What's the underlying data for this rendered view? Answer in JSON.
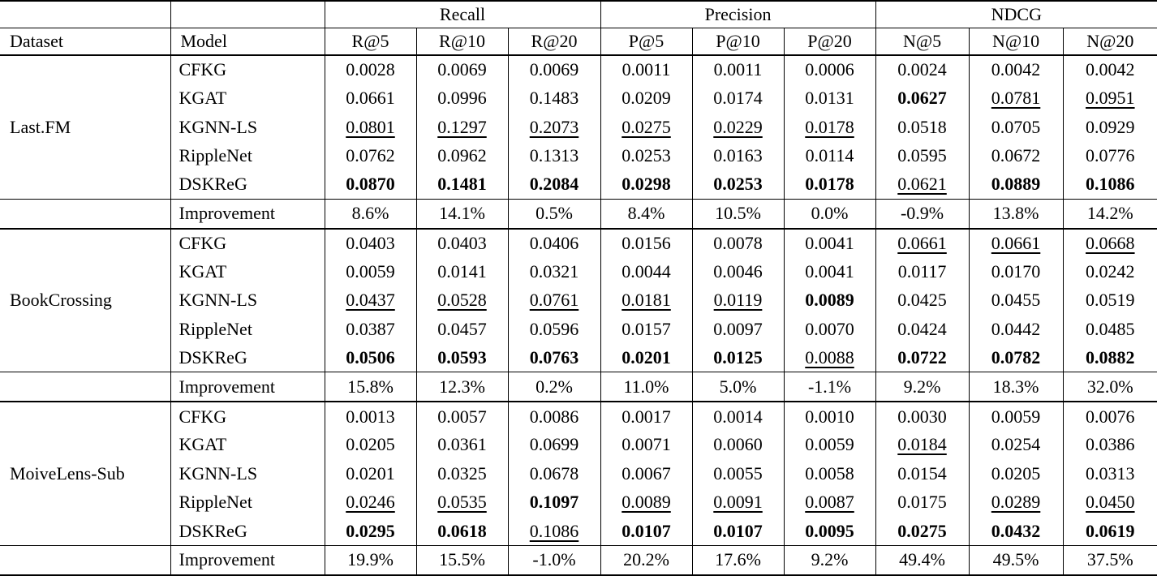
{
  "header": {
    "groups": {
      "recall": "Recall",
      "precision": "Precision",
      "ndcg": "NDCG"
    },
    "columns": [
      "Dataset",
      "Model",
      "R@5",
      "R@10",
      "R@20",
      "P@5",
      "P@10",
      "P@20",
      "N@5",
      "N@10",
      "N@20"
    ]
  },
  "blocks": [
    {
      "dataset": "Last.FM",
      "rows": [
        {
          "model": "CFKG",
          "cells": [
            {
              "t": "0.0028",
              "s": ""
            },
            {
              "t": "0.0069",
              "s": ""
            },
            {
              "t": "0.0069",
              "s": ""
            },
            {
              "t": "0.0011",
              "s": ""
            },
            {
              "t": "0.0011",
              "s": ""
            },
            {
              "t": "0.0006",
              "s": ""
            },
            {
              "t": "0.0024",
              "s": ""
            },
            {
              "t": "0.0042",
              "s": ""
            },
            {
              "t": "0.0042",
              "s": ""
            }
          ]
        },
        {
          "model": "KGAT",
          "cells": [
            {
              "t": "0.0661",
              "s": ""
            },
            {
              "t": "0.0996",
              "s": ""
            },
            {
              "t": "0.1483",
              "s": ""
            },
            {
              "t": "0.0209",
              "s": ""
            },
            {
              "t": "0.0174",
              "s": ""
            },
            {
              "t": "0.0131",
              "s": ""
            },
            {
              "t": "0.0627",
              "s": "b"
            },
            {
              "t": "0.0781",
              "s": "u"
            },
            {
              "t": "0.0951",
              "s": "u"
            }
          ]
        },
        {
          "model": "KGNN-LS",
          "cells": [
            {
              "t": "0.0801",
              "s": "u"
            },
            {
              "t": "0.1297",
              "s": "u"
            },
            {
              "t": "0.2073",
              "s": "u"
            },
            {
              "t": "0.0275",
              "s": "u"
            },
            {
              "t": "0.0229",
              "s": "u"
            },
            {
              "t": "0.0178",
              "s": "u"
            },
            {
              "t": "0.0518",
              "s": ""
            },
            {
              "t": "0.0705",
              "s": ""
            },
            {
              "t": "0.0929",
              "s": ""
            }
          ]
        },
        {
          "model": "RippleNet",
          "cells": [
            {
              "t": "0.0762",
              "s": ""
            },
            {
              "t": "0.0962",
              "s": ""
            },
            {
              "t": "0.1313",
              "s": ""
            },
            {
              "t": "0.0253",
              "s": ""
            },
            {
              "t": "0.0163",
              "s": ""
            },
            {
              "t": "0.0114",
              "s": ""
            },
            {
              "t": "0.0595",
              "s": ""
            },
            {
              "t": "0.0672",
              "s": ""
            },
            {
              "t": "0.0776",
              "s": ""
            }
          ]
        },
        {
          "model": "DSKReG",
          "cells": [
            {
              "t": "0.0870",
              "s": "b"
            },
            {
              "t": "0.1481",
              "s": "b"
            },
            {
              "t": "0.2084",
              "s": "b"
            },
            {
              "t": "0.0298",
              "s": "b"
            },
            {
              "t": "0.0253",
              "s": "b"
            },
            {
              "t": "0.0178",
              "s": "b"
            },
            {
              "t": "0.0621",
              "s": "u"
            },
            {
              "t": "0.0889",
              "s": "b"
            },
            {
              "t": "0.1086",
              "s": "b"
            }
          ]
        }
      ],
      "improvement": {
        "label": "Improvement",
        "values": [
          "8.6%",
          "14.1%",
          "0.5%",
          "8.4%",
          "10.5%",
          "0.0%",
          "-0.9%",
          "13.8%",
          "14.2%"
        ]
      }
    },
    {
      "dataset": "BookCrossing",
      "rows": [
        {
          "model": "CFKG",
          "cells": [
            {
              "t": "0.0403",
              "s": ""
            },
            {
              "t": "0.0403",
              "s": ""
            },
            {
              "t": "0.0406",
              "s": ""
            },
            {
              "t": "0.0156",
              "s": ""
            },
            {
              "t": "0.0078",
              "s": ""
            },
            {
              "t": "0.0041",
              "s": ""
            },
            {
              "t": "0.0661",
              "s": "u"
            },
            {
              "t": "0.0661",
              "s": "u"
            },
            {
              "t": "0.0668",
              "s": "u"
            }
          ]
        },
        {
          "model": "KGAT",
          "cells": [
            {
              "t": "0.0059",
              "s": ""
            },
            {
              "t": "0.0141",
              "s": ""
            },
            {
              "t": "0.0321",
              "s": ""
            },
            {
              "t": "0.0044",
              "s": ""
            },
            {
              "t": "0.0046",
              "s": ""
            },
            {
              "t": "0.0041",
              "s": ""
            },
            {
              "t": "0.0117",
              "s": ""
            },
            {
              "t": "0.0170",
              "s": ""
            },
            {
              "t": "0.0242",
              "s": ""
            }
          ]
        },
        {
          "model": "KGNN-LS",
          "cells": [
            {
              "t": "0.0437",
              "s": "u"
            },
            {
              "t": "0.0528",
              "s": "u"
            },
            {
              "t": "0.0761",
              "s": "u"
            },
            {
              "t": "0.0181",
              "s": "u"
            },
            {
              "t": "0.0119",
              "s": "u"
            },
            {
              "t": "0.0089",
              "s": "b"
            },
            {
              "t": "0.0425",
              "s": ""
            },
            {
              "t": "0.0455",
              "s": ""
            },
            {
              "t": "0.0519",
              "s": ""
            }
          ]
        },
        {
          "model": "RippleNet",
          "cells": [
            {
              "t": "0.0387",
              "s": ""
            },
            {
              "t": "0.0457",
              "s": ""
            },
            {
              "t": "0.0596",
              "s": ""
            },
            {
              "t": "0.0157",
              "s": ""
            },
            {
              "t": "0.0097",
              "s": ""
            },
            {
              "t": "0.0070",
              "s": ""
            },
            {
              "t": "0.0424",
              "s": ""
            },
            {
              "t": "0.0442",
              "s": ""
            },
            {
              "t": "0.0485",
              "s": ""
            }
          ]
        },
        {
          "model": "DSKReG",
          "cells": [
            {
              "t": "0.0506",
              "s": "b"
            },
            {
              "t": "0.0593",
              "s": "b"
            },
            {
              "t": "0.0763",
              "s": "b"
            },
            {
              "t": "0.0201",
              "s": "b"
            },
            {
              "t": "0.0125",
              "s": "b"
            },
            {
              "t": "0.0088",
              "s": "u"
            },
            {
              "t": "0.0722",
              "s": "b"
            },
            {
              "t": "0.0782",
              "s": "b"
            },
            {
              "t": "0.0882",
              "s": "b"
            }
          ]
        }
      ],
      "improvement": {
        "label": "Improvement",
        "values": [
          "15.8%",
          "12.3%",
          "0.2%",
          "11.0%",
          "5.0%",
          "-1.1%",
          "9.2%",
          "18.3%",
          "32.0%"
        ]
      }
    },
    {
      "dataset": "MoiveLens-Sub",
      "rows": [
        {
          "model": "CFKG",
          "cells": [
            {
              "t": "0.0013",
              "s": ""
            },
            {
              "t": "0.0057",
              "s": ""
            },
            {
              "t": "0.0086",
              "s": ""
            },
            {
              "t": "0.0017",
              "s": ""
            },
            {
              "t": "0.0014",
              "s": ""
            },
            {
              "t": "0.0010",
              "s": ""
            },
            {
              "t": "0.0030",
              "s": ""
            },
            {
              "t": "0.0059",
              "s": ""
            },
            {
              "t": "0.0076",
              "s": ""
            }
          ]
        },
        {
          "model": "KGAT",
          "cells": [
            {
              "t": "0.0205",
              "s": ""
            },
            {
              "t": "0.0361",
              "s": ""
            },
            {
              "t": "0.0699",
              "s": ""
            },
            {
              "t": "0.0071",
              "s": ""
            },
            {
              "t": "0.0060",
              "s": ""
            },
            {
              "t": "0.0059",
              "s": ""
            },
            {
              "t": "0.0184",
              "s": "u"
            },
            {
              "t": "0.0254",
              "s": ""
            },
            {
              "t": "0.0386",
              "s": ""
            }
          ]
        },
        {
          "model": "KGNN-LS",
          "cells": [
            {
              "t": "0.0201",
              "s": ""
            },
            {
              "t": "0.0325",
              "s": ""
            },
            {
              "t": "0.0678",
              "s": ""
            },
            {
              "t": "0.0067",
              "s": ""
            },
            {
              "t": "0.0055",
              "s": ""
            },
            {
              "t": "0.0058",
              "s": ""
            },
            {
              "t": "0.0154",
              "s": ""
            },
            {
              "t": "0.0205",
              "s": ""
            },
            {
              "t": "0.0313",
              "s": ""
            }
          ]
        },
        {
          "model": "RippleNet",
          "cells": [
            {
              "t": "0.0246",
              "s": "u"
            },
            {
              "t": "0.0535",
              "s": "u"
            },
            {
              "t": "0.1097",
              "s": "b"
            },
            {
              "t": "0.0089",
              "s": "u"
            },
            {
              "t": "0.0091",
              "s": "u"
            },
            {
              "t": "0.0087",
              "s": "u"
            },
            {
              "t": "0.0175",
              "s": ""
            },
            {
              "t": "0.0289",
              "s": "u"
            },
            {
              "t": "0.0450",
              "s": "u"
            }
          ]
        },
        {
          "model": "DSKReG",
          "cells": [
            {
              "t": "0.0295",
              "s": "b"
            },
            {
              "t": "0.0618",
              "s": "b"
            },
            {
              "t": "0.1086",
              "s": "u"
            },
            {
              "t": "0.0107",
              "s": "b"
            },
            {
              "t": "0.0107",
              "s": "b"
            },
            {
              "t": "0.0095",
              "s": "b"
            },
            {
              "t": "0.0275",
              "s": "b"
            },
            {
              "t": "0.0432",
              "s": "b"
            },
            {
              "t": "0.0619",
              "s": "b"
            }
          ]
        }
      ],
      "improvement": {
        "label": "Improvement",
        "values": [
          "19.9%",
          "15.5%",
          "-1.0%",
          "20.2%",
          "17.6%",
          "9.2%",
          "49.4%",
          "49.5%",
          "37.5%"
        ]
      }
    }
  ]
}
